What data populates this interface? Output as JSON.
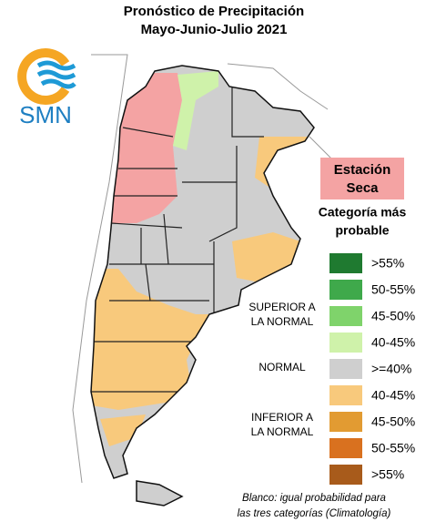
{
  "header": {
    "title_lines": [
      "Pronóstico de Precipitación",
      "Mayo-Junio-Julio 2021"
    ]
  },
  "logo": {
    "text": "SMN"
  },
  "dry_season": {
    "lines": [
      "Estación",
      "Seca"
    ]
  },
  "legend": {
    "title_lines": [
      "Categoría más",
      "probable"
    ],
    "items": [
      {
        "label": ">55%",
        "color": "#1f7a30"
      },
      {
        "label": "50-55%",
        "color": "#3fa94b"
      },
      {
        "label": "45-50%",
        "color": "#7fd36b"
      },
      {
        "label": "40-45%",
        "color": "#cff2aa"
      },
      {
        "label": ">=40%",
        "color": "#cfcfcf"
      },
      {
        "label": "40-45%",
        "color": "#f8c97c"
      },
      {
        "label": "45-50%",
        "color": "#e29b32"
      },
      {
        "label": "50-55%",
        "color": "#d9711f"
      },
      {
        "label": ">55%",
        "color": "#a85b1b"
      }
    ],
    "groups": [
      {
        "lines": [
          "SUPERIOR A",
          "LA NORMAL"
        ]
      },
      {
        "lines": [
          "NORMAL"
        ]
      },
      {
        "lines": [
          "INFERIOR A",
          "LA NORMAL"
        ]
      }
    ]
  },
  "footnote": {
    "lines": [
      "Blanco: igual probabilidad para",
      "las tres categorías (Climatología)"
    ]
  }
}
